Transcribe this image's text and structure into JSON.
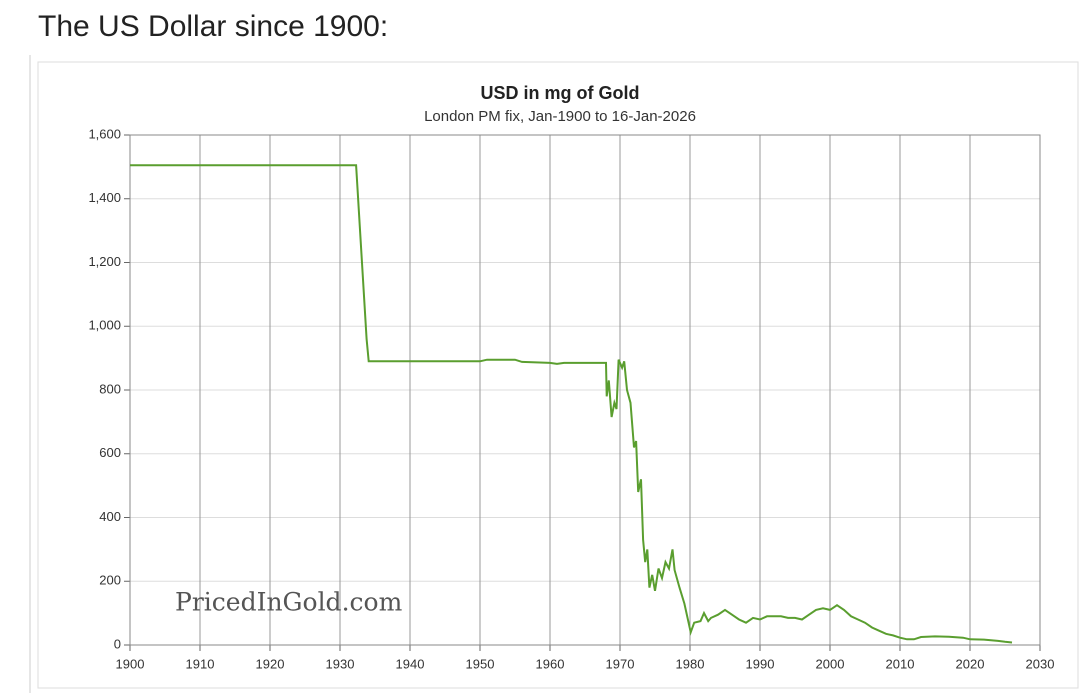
{
  "heading": "The US Dollar since 1900:",
  "chart_data": {
    "type": "line",
    "title": "USD in mg of Gold",
    "subtitle": "London PM fix, Jan-1900 to 16-Jan-2026",
    "watermark": "PricedInGold.com",
    "color": "#5a9e2f",
    "x": [
      1900,
      1932.3,
      1933.8,
      1934.1,
      1950,
      1951,
      1955,
      1956,
      1960,
      1961,
      1962,
      1968,
      1968.1,
      1968.4,
      1968.8,
      1969.2,
      1969.5,
      1969.8,
      1970.3,
      1970.6,
      1971,
      1971.5,
      1972,
      1972.3,
      1972.6,
      1973,
      1973.3,
      1973.6,
      1973.9,
      1974.2,
      1974.6,
      1975,
      1975.5,
      1976,
      1976.5,
      1977,
      1977.5,
      1977.8,
      1978.5,
      1979.2,
      1979.8,
      1980.1,
      1980.6,
      1981.5,
      1982,
      1982.6,
      1983,
      1984,
      1985,
      1986,
      1987,
      1988,
      1989,
      1990,
      1991,
      1993,
      1994,
      1995,
      1996,
      1997,
      1998,
      1999,
      2000,
      2001,
      2002,
      2003,
      2004,
      2005,
      2006,
      2007,
      2008,
      2009,
      2010,
      2011,
      2012,
      2013,
      2015,
      2017,
      2019,
      2020,
      2022,
      2024,
      2025,
      2026
    ],
    "values": [
      1505,
      1505,
      960,
      890,
      890,
      895,
      895,
      888,
      885,
      882,
      885,
      885,
      780,
      830,
      715,
      760,
      740,
      895,
      870,
      890,
      800,
      760,
      620,
      640,
      480,
      520,
      330,
      260,
      300,
      180,
      220,
      170,
      240,
      210,
      260,
      240,
      300,
      235,
      180,
      130,
      70,
      40,
      70,
      75,
      100,
      75,
      85,
      95,
      110,
      95,
      80,
      70,
      85,
      80,
      90,
      90,
      85,
      85,
      80,
      95,
      110,
      115,
      110,
      125,
      110,
      90,
      80,
      70,
      55,
      45,
      35,
      30,
      23,
      18,
      18,
      25,
      27,
      26,
      23,
      18,
      17,
      13,
      10,
      8
    ],
    "xlim": [
      1900,
      2030
    ],
    "ylim": [
      0,
      1600
    ],
    "xticks": [
      1900,
      1910,
      1920,
      1930,
      1940,
      1950,
      1960,
      1970,
      1980,
      1990,
      2000,
      2010,
      2020,
      2030
    ],
    "yticks": [
      0,
      200,
      400,
      600,
      800,
      {
        "value": 1000,
        "label": "1,000"
      },
      {
        "value": 1200,
        "label": "1,200"
      },
      {
        "value": 1400,
        "label": "1,400"
      },
      {
        "value": 1600,
        "label": "1,600"
      }
    ],
    "grid": true
  }
}
